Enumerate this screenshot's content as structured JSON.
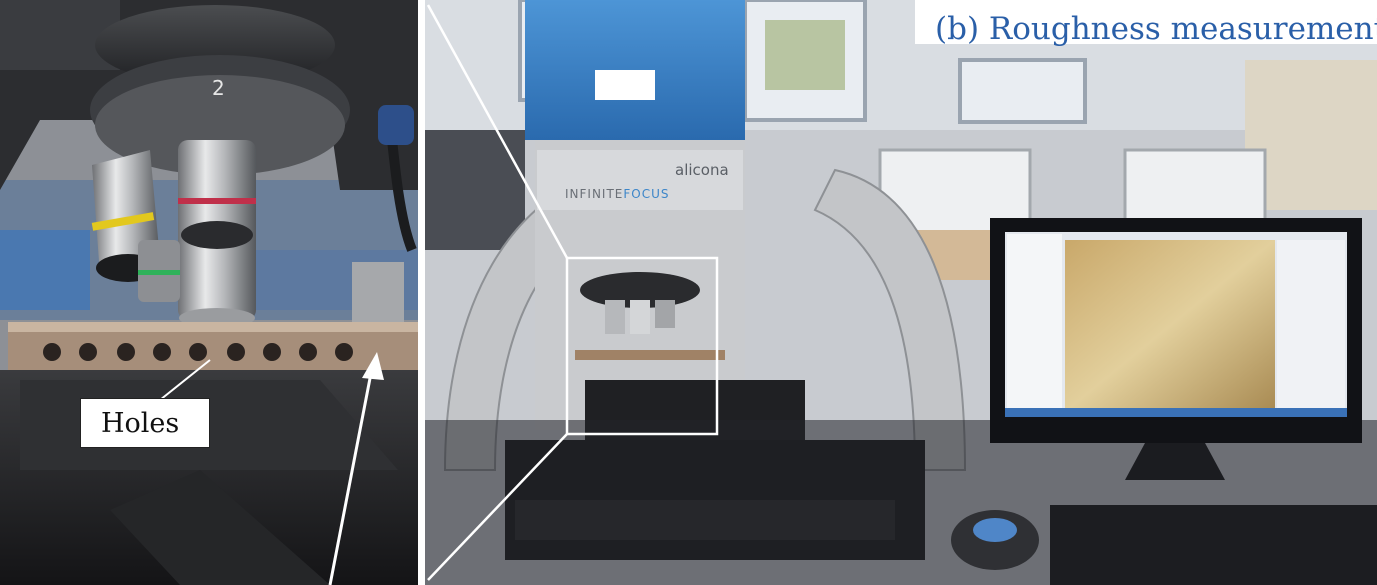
{
  "caption": "(b) Roughness measurement",
  "labels": {
    "holes": "Holes"
  },
  "instrument": {
    "brand": "alicona",
    "model_prefix": "INFINITE",
    "model_suffix": "FOCUS"
  },
  "turret_number": "2",
  "colors": {
    "caption_text": "#2a5fa8",
    "instrument_blue": "#2e7bc4",
    "instrument_gray": "#b9bcbf",
    "bench_dark": "#1a1a1c",
    "frame_white": "#ffffff"
  }
}
